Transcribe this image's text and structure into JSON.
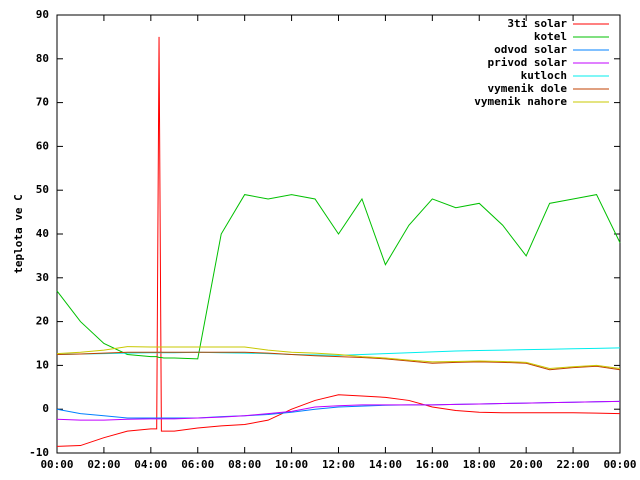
{
  "chart_data": {
    "type": "line",
    "y_label": "teplota ve C",
    "x": [
      0,
      1,
      2,
      3,
      4,
      4.25,
      4.35,
      4.45,
      4.55,
      5,
      6,
      7,
      8,
      9,
      10,
      11,
      12,
      13,
      14,
      15,
      16,
      17,
      18,
      19,
      20,
      21,
      22,
      23,
      24
    ],
    "xlim": [
      0,
      24
    ],
    "xticks": [
      {
        "value": 0,
        "label": "00:00"
      },
      {
        "value": 2,
        "label": "02:00"
      },
      {
        "value": 4,
        "label": "04:00"
      },
      {
        "value": 6,
        "label": "06:00"
      },
      {
        "value": 8,
        "label": "08:00"
      },
      {
        "value": 10,
        "label": "10:00"
      },
      {
        "value": 12,
        "label": "12:00"
      },
      {
        "value": 14,
        "label": "14:00"
      },
      {
        "value": 16,
        "label": "16:00"
      },
      {
        "value": 18,
        "label": "18:00"
      },
      {
        "value": 20,
        "label": "20:00"
      },
      {
        "value": 22,
        "label": "22:00"
      },
      {
        "value": 24,
        "label": "00:00"
      }
    ],
    "ylim": [
      -10,
      90
    ],
    "yticks": [
      -10,
      0,
      10,
      20,
      30,
      40,
      50,
      60,
      70,
      80,
      90
    ],
    "legend": "top-right",
    "series": [
      {
        "name": "3ti solar",
        "color": "#ff0000",
        "values": [
          -8.5,
          -8.3,
          -6.5,
          -5,
          -4.5,
          -4.5,
          85,
          -5,
          -5,
          -5,
          -4.3,
          -3.8,
          -3.5,
          -2.5,
          0,
          2,
          3.3,
          3,
          2.7,
          2,
          0.5,
          -0.3,
          -0.7,
          -0.8,
          -0.8,
          -0.8,
          -0.8,
          -0.9,
          -1
        ]
      },
      {
        "name": "kotel",
        "color": "#00c000",
        "values": [
          27,
          20,
          15,
          12.5,
          12,
          12,
          11.8,
          11.8,
          11.7,
          11.7,
          11.5,
          40,
          49,
          48,
          49,
          48,
          40,
          48,
          33,
          42,
          48,
          46,
          47,
          42,
          35,
          47,
          48,
          49,
          38
        ]
      },
      {
        "name": "odvod solar",
        "color": "#0080ff",
        "values": [
          0,
          -1,
          -1.5,
          -2,
          -2,
          -2,
          -2,
          -2,
          -2,
          -2,
          -2,
          -1.7,
          -1.5,
          -1.2,
          -0.7,
          0,
          0.5,
          0.7,
          0.9,
          1,
          1,
          1.1,
          1.2,
          1.3,
          1.4,
          1.5,
          1.6,
          1.7,
          1.8
        ]
      },
      {
        "name": "privod solar",
        "color": "#c000ff",
        "values": [
          -2.3,
          -2.5,
          -2.5,
          -2.3,
          -2.2,
          -2.2,
          -2.2,
          -2.2,
          -2.2,
          -2.2,
          -2,
          -1.8,
          -1.5,
          -1,
          -0.5,
          0.5,
          0.8,
          1,
          1,
          1,
          1,
          1.1,
          1.2,
          1.3,
          1.4,
          1.5,
          1.6,
          1.7,
          1.8
        ]
      },
      {
        "name": "kutloch",
        "color": "#00eeee",
        "values": [
          12.5,
          12.6,
          12.7,
          12.8,
          12.9,
          12.9,
          12.9,
          12.9,
          12.9,
          12.9,
          13,
          12.9,
          12.8,
          12.7,
          12.5,
          12.4,
          12.3,
          12.5,
          12.7,
          12.9,
          13.1,
          13.3,
          13.4,
          13.5,
          13.6,
          13.7,
          13.8,
          13.9,
          14
        ]
      },
      {
        "name": "vymenik dole",
        "color": "#c04000",
        "values": [
          12.5,
          12.6,
          12.8,
          13,
          13,
          13,
          13,
          13,
          13,
          13,
          13,
          13,
          13,
          12.8,
          12.5,
          12.2,
          12,
          11.8,
          11.5,
          11,
          10.5,
          10.7,
          10.8,
          10.7,
          10.5,
          9,
          9.5,
          9.8,
          9
        ]
      },
      {
        "name": "vymenik nahore",
        "color": "#c8c800",
        "values": [
          12.7,
          13,
          13.5,
          14.3,
          14.2,
          14.2,
          14.2,
          14.2,
          14.2,
          14.2,
          14.2,
          14.2,
          14.2,
          13.5,
          13,
          12.8,
          12.5,
          12,
          11.7,
          11.2,
          10.8,
          10.9,
          11,
          10.9,
          10.7,
          9.3,
          9.7,
          10,
          9.3
        ]
      }
    ]
  }
}
